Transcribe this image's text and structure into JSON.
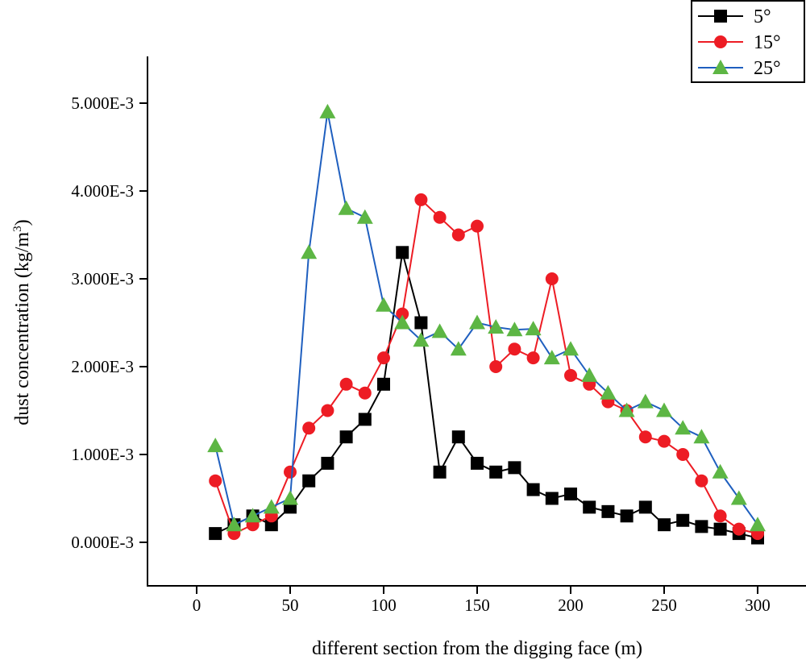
{
  "chart_data": {
    "type": "line",
    "xlabel": "different section from the digging face (m)",
    "ylabel_main": "dust concentration (kg/m",
    "ylabel_sup": "3",
    "ylabel_end": ")",
    "xlim": [
      -25,
      325
    ],
    "ylim": [
      -0.0005,
      0.0055
    ],
    "xticks": [
      0,
      50,
      100,
      150,
      200,
      250,
      300
    ],
    "xtick_labels": [
      "0",
      "50",
      "100",
      "150",
      "200",
      "250",
      "300"
    ],
    "yticks": [
      0,
      0.001,
      0.002,
      0.003,
      0.004,
      0.005
    ],
    "ytick_labels": [
      "0.000E-3",
      "1.000E-3",
      "2.000E-3",
      "3.000E-3",
      "4.000E-3",
      "5.000E-3"
    ],
    "legend_position": "top-right",
    "grid": false,
    "x": [
      10,
      20,
      30,
      40,
      50,
      60,
      70,
      80,
      90,
      100,
      110,
      120,
      130,
      140,
      150,
      160,
      170,
      180,
      190,
      200,
      210,
      220,
      230,
      240,
      250,
      260,
      270,
      280,
      290,
      300
    ],
    "series": [
      {
        "name": "5°",
        "color": "#000000",
        "line_color": "#000000",
        "marker": "square",
        "values": [
          0.0001,
          0.0002,
          0.0003,
          0.0002,
          0.0004,
          0.0007,
          0.0009,
          0.0012,
          0.0014,
          0.0018,
          0.0033,
          0.0025,
          0.0008,
          0.0012,
          0.0009,
          0.0008,
          0.00085,
          0.0006,
          0.0005,
          0.00055,
          0.0004,
          0.00035,
          0.0003,
          0.0004,
          0.0002,
          0.00025,
          0.00018,
          0.00015,
          0.0001,
          5e-05
        ]
      },
      {
        "name": "15°",
        "color": "#ED1C24",
        "line_color": "#ED1C24",
        "marker": "circle",
        "values": [
          0.0007,
          0.0001,
          0.0002,
          0.0003,
          0.0008,
          0.0013,
          0.0015,
          0.0018,
          0.0017,
          0.0021,
          0.0026,
          0.0039,
          0.0037,
          0.0035,
          0.0036,
          0.002,
          0.0022,
          0.0021,
          0.003,
          0.0019,
          0.0018,
          0.0016,
          0.0015,
          0.0012,
          0.00115,
          0.001,
          0.0007,
          0.0003,
          0.00015,
          0.0001
        ]
      },
      {
        "name": "25°",
        "color": "#5DB644",
        "line_color": "#1F5FBF",
        "marker": "triangle",
        "values": [
          0.0011,
          0.0002,
          0.0003,
          0.0004,
          0.0005,
          0.0033,
          0.0049,
          0.0038,
          0.0037,
          0.0027,
          0.0025,
          0.0023,
          0.0024,
          0.0022,
          0.0025,
          0.00245,
          0.00242,
          0.00243,
          0.0021,
          0.0022,
          0.0019,
          0.0017,
          0.0015,
          0.0016,
          0.0015,
          0.0013,
          0.0012,
          0.0008,
          0.0005,
          0.0002
        ]
      }
    ]
  }
}
